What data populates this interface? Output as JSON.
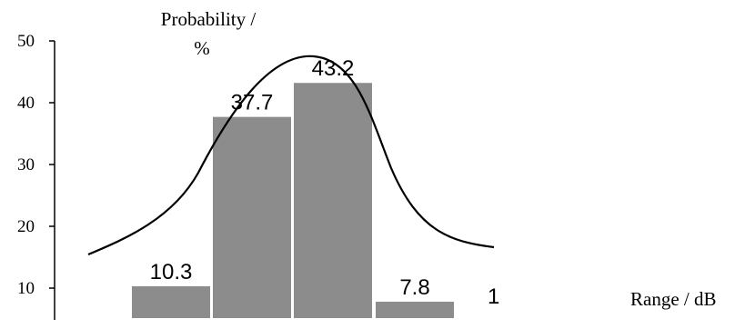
{
  "chart_data": {
    "type": "bar",
    "ylabel_line1": "Probability /",
    "ylabel_line2": "%",
    "xlabel": "Range / dB",
    "yticks": [
      10,
      20,
      30,
      40,
      50
    ],
    "ylim": [
      5,
      50
    ],
    "grid": false,
    "bar_color": "#8c8c8c",
    "values": [
      10.3,
      37.7,
      43.2,
      7.8,
      1
    ],
    "data_labels": [
      "10.3",
      "37.7",
      "43.2",
      "7.8",
      "1"
    ],
    "curve_peak": 47.5,
    "curve_color": "#000000"
  }
}
